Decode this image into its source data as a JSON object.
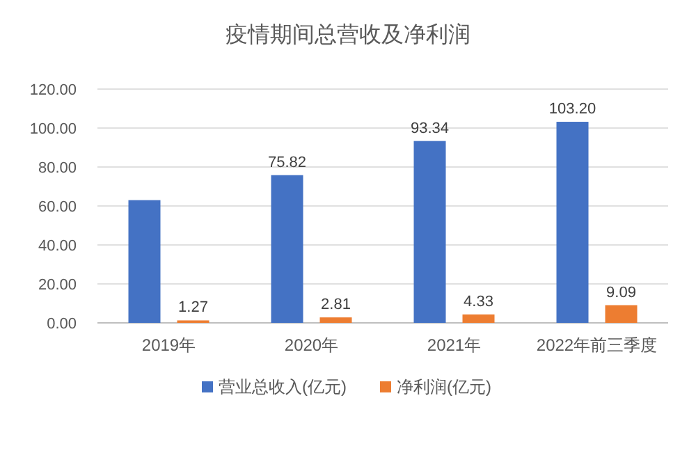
{
  "chart_data": {
    "type": "bar",
    "title": "疫情期间总营收及净利润",
    "categories": [
      "2019年",
      "2020年",
      "2021年",
      "2022年前三季度"
    ],
    "series": [
      {
        "name": "营业总收入(亿元)",
        "color": "#4472c4",
        "values": [
          63,
          75.82,
          93.34,
          103.2
        ],
        "value_labels": [
          null,
          "75.82",
          "93.34",
          "103.20"
        ]
      },
      {
        "name": "净利润(亿元)",
        "color": "#ed7d31",
        "values": [
          1.27,
          2.81,
          4.33,
          9.09
        ],
        "value_labels": [
          "1.27",
          "2.81",
          "4.33",
          "9.09"
        ]
      }
    ],
    "ylim": [
      0,
      120
    ],
    "yticks": [
      {
        "value": 0,
        "label": "0.00"
      },
      {
        "value": 20,
        "label": "20.00"
      },
      {
        "value": 40,
        "label": "40.00"
      },
      {
        "value": 60,
        "label": "60.00"
      },
      {
        "value": 80,
        "label": "80.00"
      },
      {
        "value": 100,
        "label": "100.00"
      },
      {
        "value": 120,
        "label": "120.00"
      }
    ],
    "grid": "y",
    "legend": "bottom"
  }
}
